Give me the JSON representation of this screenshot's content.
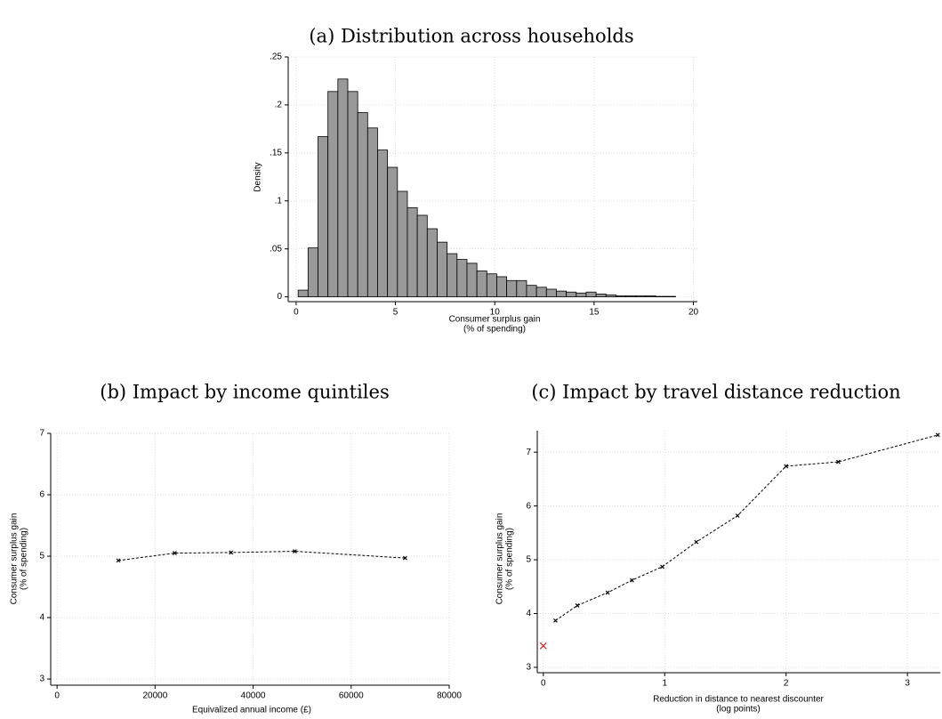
{
  "chart_data": [
    {
      "type": "histogram",
      "title": "(a) Distribution across households",
      "xlabel": [
        "Consumer surplus gain",
        "(% of spending)"
      ],
      "ylabel": [
        "Density"
      ],
      "bins": [
        0.1,
        0.6,
        1.1,
        1.6,
        2.1,
        2.6,
        3.1,
        3.6,
        4.1,
        4.6,
        5.1,
        5.6,
        6.1,
        6.6,
        7.1,
        7.6,
        8.1,
        8.6,
        9.1,
        9.6,
        10.1,
        10.6,
        11.1,
        11.6,
        12.1,
        12.6,
        13.1,
        13.6,
        14.1,
        14.6,
        15.1,
        15.6,
        16.1,
        16.6,
        17.1,
        17.6,
        18.1,
        18.6,
        19.1
      ],
      "values": [
        0.007,
        0.051,
        0.167,
        0.214,
        0.227,
        0.214,
        0.192,
        0.176,
        0.153,
        0.135,
        0.11,
        0.093,
        0.085,
        0.071,
        0.057,
        0.045,
        0.039,
        0.035,
        0.027,
        0.024,
        0.021,
        0.017,
        0.017,
        0.012,
        0.01,
        0.008,
        0.006,
        0.005,
        0.004,
        0.005,
        0.003,
        0.002,
        0.001,
        0.001,
        0.001,
        0.001,
        0.0005,
        0.0005
      ],
      "color": "#999999",
      "edgecolor": "#000000",
      "xlim": [
        -0.4,
        20.2
      ],
      "ylim": [
        -0.005,
        0.25
      ],
      "xticks": [
        0,
        5,
        10,
        15,
        20
      ],
      "yticks": [
        0,
        {
          "value": 0.05,
          "label": ".05"
        },
        {
          "value": 0.1,
          "label": ".1"
        },
        {
          "value": 0.15,
          "label": ".15"
        },
        {
          "value": 0.2,
          "label": ".2"
        },
        {
          "value": 0.25,
          "label": ".25"
        }
      ],
      "grid": true
    },
    {
      "type": "line",
      "title": "(b) Impact by income quintiles",
      "xlabel": [
        "Equivalized annual income (£)"
      ],
      "ylabel": [
        "Consumer surplus gain",
        "(% of spending)"
      ],
      "series": [
        {
          "color": "#000000",
          "linestyle": "dashed",
          "x": [
            12500,
            24000,
            35500,
            48500,
            71000
          ],
          "values": [
            4.93,
            5.05,
            5.06,
            5.08,
            4.97
          ]
        }
      ],
      "xlim": [
        -1300,
        80000
      ],
      "ylim": [
        2.9,
        7
      ],
      "xticks": [
        0,
        20000,
        40000,
        60000,
        80000
      ],
      "yticks": [
        3,
        4,
        5,
        6,
        7
      ],
      "grid": true
    },
    {
      "type": "line",
      "title": "(c) Impact by travel distance reduction",
      "xlabel": [
        "Reduction in distance to nearest discounter",
        "(log points)"
      ],
      "ylabel": [
        "Consumer surplus gain",
        "(% of spending)"
      ],
      "series": [
        {
          "color": "#000000",
          "linestyle": "dashed",
          "x": [
            0.1,
            0.28,
            0.53,
            0.73,
            0.98,
            1.26,
            1.6,
            2.0,
            2.43,
            3.25
          ],
          "values": [
            3.87,
            4.15,
            4.39,
            4.62,
            4.87,
            5.33,
            5.82,
            6.74,
            6.82,
            7.32
          ]
        },
        {
          "color": "#d62020",
          "linestyle": "none",
          "x": [
            0
          ],
          "values": [
            3.4
          ]
        }
      ],
      "xlim": [
        -0.05,
        3.27
      ],
      "ylim": [
        2.9,
        7.4
      ],
      "xticks": [
        0,
        1,
        2,
        3
      ],
      "yticks": [
        3,
        4,
        5,
        6,
        7
      ],
      "grid": true
    }
  ]
}
